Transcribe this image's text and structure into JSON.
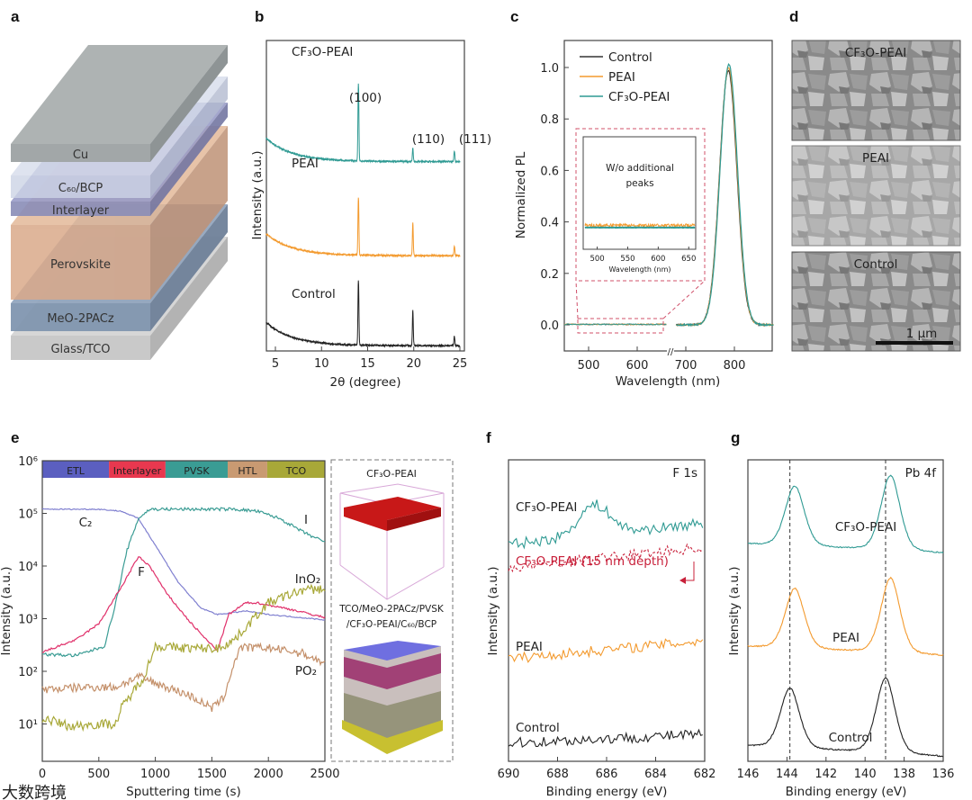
{
  "panels": {
    "a": "a",
    "b": "b",
    "c": "c",
    "d": "d",
    "e": "e",
    "f": "f",
    "g": "g"
  },
  "layers": [
    {
      "name": "Glass/TCO",
      "front": "#c9c9c9",
      "top": "#d6d6d6",
      "side": "#b3b3b3"
    },
    {
      "name": "MeO-2PACz",
      "front": "#8196b0",
      "top": "#93a6be",
      "side": "#6f8199"
    },
    {
      "name": "Perovskite",
      "front": "#d9a989",
      "top": "#e3b999",
      "side": "#bf9276"
    },
    {
      "name": "Interlayer",
      "front": "#8a8db8",
      "top": "#9a9dc8",
      "side": "#7477a3"
    },
    {
      "name": "C₆₀/BCP",
      "front": "#cdd4e6",
      "top": "#d7ddec",
      "side": "#b3bbd0"
    },
    {
      "name": "Cu",
      "front": "#a2a7a8",
      "top": "#aeb3b3",
      "side": "#8e9495"
    }
  ],
  "watermark": "大数跨境",
  "chart_data": [
    {
      "id": "b",
      "type": "line",
      "title": "",
      "xlabel": "2θ (degree)",
      "ylabel": "Intensity (a.u.)",
      "xlim": [
        4,
        25
      ],
      "ylim": [
        0,
        1
      ],
      "xticks": [
        5,
        10,
        15,
        20,
        25
      ],
      "series": [
        {
          "name": "CF₃O-PEAI",
          "color": "#2f9a93",
          "baseline": 0.61,
          "rise": 0.075,
          "peaks": [
            [
              14.0,
              0.25
            ],
            [
              19.9,
              0.045
            ],
            [
              24.4,
              0.035
            ]
          ]
        },
        {
          "name": "PEAI",
          "color": "#f39a2e",
          "baseline": 0.307,
          "rise": 0.07,
          "peaks": [
            [
              14.0,
              0.186
            ],
            [
              19.9,
              0.104
            ],
            [
              24.4,
              0.03
            ]
          ]
        },
        {
          "name": "Control",
          "color": "#222222",
          "baseline": 0.017,
          "rise": 0.075,
          "peaks": [
            [
              14.0,
              0.21
            ],
            [
              19.9,
              0.113
            ],
            [
              24.4,
              0.03
            ]
          ]
        }
      ],
      "annotations": [
        "(100)",
        "(110)",
        "(111)"
      ]
    },
    {
      "id": "c",
      "type": "line",
      "xlabel": "Wavelength (nm)",
      "ylabel": "Normalized PL",
      "xlim": [
        450,
        880
      ],
      "xbreak": [
        660,
        680
      ],
      "ylim": [
        -0.1,
        1.1
      ],
      "xticks": [
        500,
        600,
        700,
        800
      ],
      "yticks": [
        "0.0",
        "0.2",
        "0.4",
        "0.6",
        "0.8",
        "1.0"
      ],
      "peak_nm": 788,
      "fwhm_nm": 42,
      "series": [
        {
          "name": "Control",
          "color": "#333333"
        },
        {
          "name": "PEAI",
          "color": "#f39a2e"
        },
        {
          "name": "CF₃O-PEAI",
          "color": "#2f9a93"
        }
      ],
      "inset": {
        "xlim": [
          480,
          660
        ],
        "xticks": [
          500,
          550,
          600,
          650
        ],
        "xlabel": "Wavelength (nm)",
        "note_line1": "W/o additional",
        "note_line2": "peaks"
      }
    },
    {
      "id": "d",
      "type": "image",
      "labels": [
        "CF₃O-PEAI",
        "PEAI",
        "Control"
      ],
      "scalebar": "1 μm"
    },
    {
      "id": "e",
      "type": "line",
      "scale": "log",
      "xlabel": "Sputtering time (s)",
      "ylabel": "Intensity (a.u.)",
      "xlim": [
        0,
        2500
      ],
      "ylim": [
        2,
        1000000
      ],
      "xticks": [
        0,
        500,
        1000,
        1500,
        2000,
        2500
      ],
      "yticks": [
        "10¹",
        "10²",
        "10³",
        "10⁴",
        "10⁵",
        "10⁶"
      ],
      "regions": [
        {
          "name": "ETL",
          "from": 0,
          "to": 590,
          "color": "#5b5fc0"
        },
        {
          "name": "Interlayer",
          "from": 590,
          "to": 1090,
          "color": "#e8384f"
        },
        {
          "name": "PVSK",
          "from": 1090,
          "to": 1640,
          "color": "#3a9c94"
        },
        {
          "name": "HTL",
          "from": 1640,
          "to": 1990,
          "color": "#c99a72"
        },
        {
          "name": "TCO",
          "from": 1990,
          "to": 2500,
          "color": "#a8a838"
        }
      ],
      "series": [
        {
          "name": "C₂",
          "color": "#8080d0",
          "noise": 0.01,
          "points": [
            [
              0,
              120000
            ],
            [
              500,
              120000
            ],
            [
              700,
              110000
            ],
            [
              850,
              80000
            ],
            [
              1000,
              25000
            ],
            [
              1200,
              5000
            ],
            [
              1400,
              1600
            ],
            [
              1550,
              1200
            ],
            [
              1800,
              1400
            ],
            [
              2000,
              1200
            ],
            [
              2500,
              950
            ]
          ]
        },
        {
          "name": "I",
          "color": "#3a9c94",
          "noise": 0.03,
          "points": [
            [
              0,
              210
            ],
            [
              300,
              200
            ],
            [
              550,
              300
            ],
            [
              650,
              2000
            ],
            [
              750,
              20000
            ],
            [
              850,
              80000
            ],
            [
              950,
              120000
            ],
            [
              1700,
              120000
            ],
            [
              1900,
              110000
            ],
            [
              2100,
              80000
            ],
            [
              2300,
              45000
            ],
            [
              2500,
              28000
            ]
          ]
        },
        {
          "name": "F",
          "color": "#e0306a",
          "noise": 0.02,
          "points": [
            [
              0,
              230
            ],
            [
              300,
              400
            ],
            [
              500,
              800
            ],
            [
              700,
              4000
            ],
            [
              850,
              15000
            ],
            [
              950,
              10000
            ],
            [
              1100,
              3000
            ],
            [
              1300,
              900
            ],
            [
              1450,
              400
            ],
            [
              1550,
              250
            ],
            [
              1650,
              1200
            ],
            [
              1800,
              2000
            ],
            [
              1900,
              2000
            ],
            [
              2200,
              1500
            ],
            [
              2500,
              1050
            ]
          ]
        },
        {
          "name": "InO₂",
          "color": "#a8a838",
          "noise": 0.09,
          "points": [
            [
              0,
              13
            ],
            [
              250,
              9
            ],
            [
              500,
              10
            ],
            [
              650,
              10
            ],
            [
              700,
              20
            ],
            [
              900,
              80
            ],
            [
              1000,
              300
            ],
            [
              1200,
              280
            ],
            [
              1550,
              270
            ],
            [
              1700,
              400
            ],
            [
              1850,
              900
            ],
            [
              2000,
              2000
            ],
            [
              2300,
              3500
            ],
            [
              2500,
              3700
            ]
          ]
        },
        {
          "name": "PO₂",
          "color": "#c4906a",
          "noise": 0.08,
          "points": [
            [
              0,
              45
            ],
            [
              400,
              50
            ],
            [
              650,
              50
            ],
            [
              850,
              80
            ],
            [
              1000,
              60
            ],
            [
              1300,
              35
            ],
            [
              1500,
              20
            ],
            [
              1600,
              30
            ],
            [
              1700,
              150
            ],
            [
              1750,
              280
            ],
            [
              2000,
              280
            ],
            [
              2300,
              220
            ],
            [
              2500,
              140
            ]
          ]
        }
      ],
      "side": {
        "top_label": "CF₃O-PEAI",
        "stack_line1": "TCO/MeO-2PACz/PVSK",
        "stack_line2": "/CF₃O-PEAI/C₆₀/BCP"
      }
    },
    {
      "id": "f",
      "type": "line",
      "title": "F 1s",
      "xlabel": "Binding energy (eV)",
      "ylabel": "Intensity (a.u.)",
      "xlim": [
        690,
        682
      ],
      "xticks": [
        690,
        688,
        686,
        684,
        682
      ],
      "series": [
        {
          "name": "CF₃O-PEAI",
          "color": "#2f9a93",
          "style": "solid",
          "start": 0.72,
          "end": 0.79,
          "bump": [
            686.5,
            0.1
          ]
        },
        {
          "name": "CF₃O-PEAI (15 nm depth)",
          "color": "#c8203a",
          "style": "dashed",
          "start": 0.64,
          "end": 0.71,
          "bump": [
            686.5,
            0
          ]
        },
        {
          "name": "PEAI",
          "color": "#f39a2e",
          "style": "solid",
          "start": 0.34,
          "end": 0.4,
          "bump": [
            686.5,
            0
          ]
        },
        {
          "name": "Control",
          "color": "#222222",
          "style": "solid",
          "start": 0.06,
          "end": 0.09,
          "bump": [
            686.5,
            0
          ]
        }
      ]
    },
    {
      "id": "g",
      "type": "line",
      "title": "Pb 4f",
      "xlabel": "Binding energy (eV)",
      "ylabel": "Intensity (a.u.)",
      "xlim": [
        146,
        136
      ],
      "xticks": [
        146,
        144,
        142,
        140,
        138,
        136
      ],
      "reference_lines": [
        143.85,
        138.95
      ],
      "series": [
        {
          "name": "CF₃O-PEAI",
          "color": "#2f9a93",
          "baseline": 0.72,
          "end": 0.69,
          "peaks": [
            [
              143.6,
              0.2
            ],
            [
              138.7,
              0.25
            ]
          ]
        },
        {
          "name": "PEAI",
          "color": "#f39a2e",
          "baseline": 0.38,
          "end": 0.35,
          "peaks": [
            [
              143.6,
              0.2
            ],
            [
              138.7,
              0.25
            ]
          ]
        },
        {
          "name": "Control",
          "color": "#222222",
          "baseline": 0.05,
          "end": 0.015,
          "peaks": [
            [
              143.85,
              0.2
            ],
            [
              138.95,
              0.25
            ]
          ]
        }
      ]
    }
  ]
}
